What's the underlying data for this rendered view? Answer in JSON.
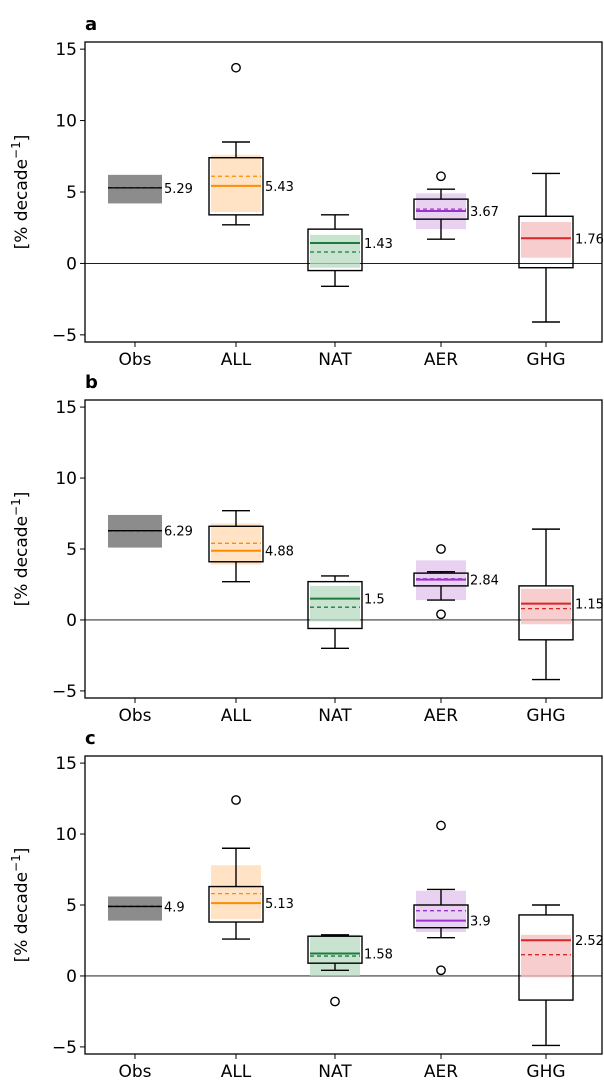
{
  "chart_data": [
    {
      "type": "box",
      "panel_label": "a",
      "ylabel": "[% decade",
      "ylabel_sup": "−1",
      "ylabel_close": "]",
      "ylim": [
        -5.5,
        15.5
      ],
      "yticks": [
        -5,
        0,
        5,
        10,
        15
      ],
      "ytick_labels": [
        "−5",
        "0",
        "5",
        "10",
        "15"
      ],
      "categories": [
        "Obs",
        "ALL",
        "NAT",
        "AER",
        "GHG"
      ],
      "series": [
        {
          "name": "Obs",
          "color": "#000000",
          "band_color": "#8c8c8c",
          "band": [
            4.2,
            6.2
          ],
          "median": 5.29,
          "mean": 5.29,
          "label": "5.29"
        },
        {
          "name": "ALL",
          "color": "#ff8c00",
          "band_color": "#ffdab0",
          "band": [
            3.6,
            7.6
          ],
          "q1": 3.4,
          "median": 5.43,
          "q3": 7.4,
          "mean": 6.1,
          "whisker_low": 2.7,
          "whisker_high": 8.5,
          "outliers": [
            13.7
          ],
          "label": "5.43"
        },
        {
          "name": "NAT",
          "color": "#1e7b3c",
          "band_color": "#b5d9c0",
          "band": [
            -0.3,
            2.0
          ],
          "q1": -0.5,
          "median": 1.43,
          "q3": 2.4,
          "mean": 0.8,
          "whisker_low": -1.6,
          "whisker_high": 3.4,
          "outliers": [],
          "label": "1.43"
        },
        {
          "name": "AER",
          "color": "#9932cc",
          "band_color": "#e0c2ec",
          "band": [
            2.4,
            4.9
          ],
          "q1": 3.1,
          "median": 3.67,
          "q3": 4.5,
          "mean": 3.8,
          "whisker_low": 1.7,
          "whisker_high": 5.2,
          "outliers": [
            6.1
          ],
          "label": "3.67"
        },
        {
          "name": "GHG",
          "color": "#d62728",
          "band_color": "#f6bcbc",
          "band": [
            0.4,
            2.9
          ],
          "q1": -0.3,
          "median": 1.76,
          "q3": 3.3,
          "mean": 1.76,
          "whisker_low": -4.1,
          "whisker_high": 6.3,
          "outliers": [],
          "label": "1.76"
        }
      ]
    },
    {
      "type": "box",
      "panel_label": "b",
      "ylabel": "[% decade",
      "ylabel_sup": "−1",
      "ylabel_close": "]",
      "ylim": [
        -5.5,
        15.5
      ],
      "yticks": [
        -5,
        0,
        5,
        10,
        15
      ],
      "ytick_labels": [
        "−5",
        "0",
        "5",
        "10",
        "15"
      ],
      "categories": [
        "Obs",
        "ALL",
        "NAT",
        "AER",
        "GHG"
      ],
      "series": [
        {
          "name": "Obs",
          "color": "#000000",
          "band_color": "#8c8c8c",
          "band": [
            5.1,
            7.4
          ],
          "median": 6.29,
          "mean": 6.29,
          "label": "6.29"
        },
        {
          "name": "ALL",
          "color": "#ff8c00",
          "band_color": "#ffdab0",
          "band": [
            3.9,
            6.8
          ],
          "q1": 4.1,
          "median": 4.88,
          "q3": 6.6,
          "mean": 5.4,
          "whisker_low": 2.7,
          "whisker_high": 7.7,
          "outliers": [],
          "label": "4.88"
        },
        {
          "name": "NAT",
          "color": "#1e7b3c",
          "band_color": "#b5d9c0",
          "band": [
            -0.1,
            2.4
          ],
          "q1": -0.6,
          "median": 1.5,
          "q3": 2.7,
          "mean": 0.9,
          "whisker_low": -2.0,
          "whisker_high": 3.1,
          "outliers": [],
          "label": "1.5"
        },
        {
          "name": "AER",
          "color": "#9932cc",
          "band_color": "#e0c2ec",
          "band": [
            1.4,
            4.2
          ],
          "q1": 2.4,
          "median": 2.84,
          "q3": 3.3,
          "mean": 2.9,
          "whisker_low": 1.4,
          "whisker_high": 3.4,
          "outliers": [
            5.0,
            0.4
          ],
          "label": "2.84"
        },
        {
          "name": "GHG",
          "color": "#d62728",
          "band_color": "#f6bcbc",
          "band": [
            -0.3,
            2.2
          ],
          "q1": -1.4,
          "median": 1.15,
          "q3": 2.4,
          "mean": 0.8,
          "whisker_low": -4.2,
          "whisker_high": 6.4,
          "outliers": [],
          "label": "1.15"
        }
      ]
    },
    {
      "type": "box",
      "panel_label": "c",
      "ylabel": "[% decade",
      "ylabel_sup": "−1",
      "ylabel_close": "]",
      "ylim": [
        -5.5,
        15.5
      ],
      "yticks": [
        -5,
        0,
        5,
        10,
        15
      ],
      "ytick_labels": [
        "−5",
        "0",
        "5",
        "10",
        "15"
      ],
      "categories": [
        "Obs",
        "ALL",
        "NAT",
        "AER",
        "GHG"
      ],
      "series": [
        {
          "name": "Obs",
          "color": "#000000",
          "band_color": "#8c8c8c",
          "band": [
            3.9,
            5.6
          ],
          "median": 4.9,
          "mean": 4.9,
          "label": "4.9"
        },
        {
          "name": "ALL",
          "color": "#ff8c00",
          "band_color": "#ffdab0",
          "band": [
            4.0,
            7.8
          ],
          "q1": 3.8,
          "median": 5.13,
          "q3": 6.3,
          "mean": 5.8,
          "whisker_low": 2.6,
          "whisker_high": 9.0,
          "outliers": [
            12.4
          ],
          "label": "5.13"
        },
        {
          "name": "NAT",
          "color": "#1e7b3c",
          "band_color": "#b5d9c0",
          "band": [
            0.0,
            2.9
          ],
          "q1": 0.9,
          "median": 1.58,
          "q3": 2.8,
          "mean": 1.4,
          "whisker_low": 0.4,
          "whisker_high": 2.9,
          "outliers": [
            -1.8
          ],
          "label": "1.58"
        },
        {
          "name": "AER",
          "color": "#9932cc",
          "band_color": "#e0c2ec",
          "band": [
            3.1,
            6.0
          ],
          "q1": 3.4,
          "median": 3.9,
          "q3": 5.0,
          "mean": 4.6,
          "whisker_low": 2.7,
          "whisker_high": 6.1,
          "outliers": [
            10.6,
            0.4
          ],
          "label": "3.9"
        },
        {
          "name": "GHG",
          "color": "#d62728",
          "band_color": "#f6bcbc",
          "band": [
            -0.1,
            2.9
          ],
          "q1": -1.7,
          "median": 2.52,
          "q3": 4.3,
          "mean": 1.5,
          "whisker_low": -4.9,
          "whisker_high": 5.0,
          "outliers": [],
          "label": "2.52"
        }
      ]
    }
  ]
}
